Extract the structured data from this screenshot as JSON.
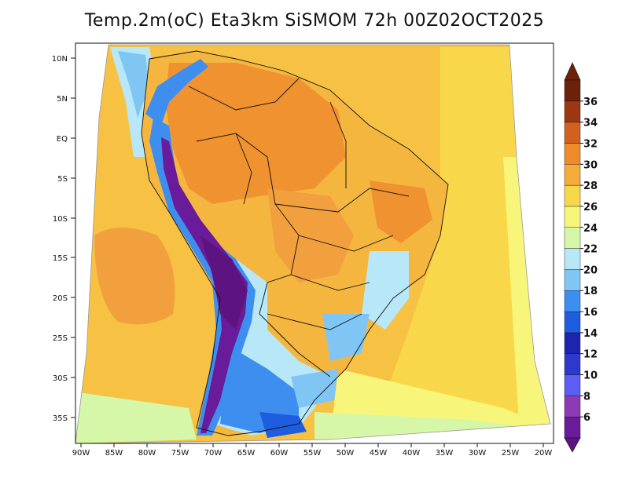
{
  "title": "Temp.2m(oC) Eta3km SiSMOM 72h 00Z02OCT2025",
  "lat_labels": [
    "10N",
    "5N",
    "EQ",
    "5S",
    "10S",
    "15S",
    "20S",
    "25S",
    "30S",
    "35S"
  ],
  "lon_labels": [
    "90W",
    "85W",
    "80W",
    "75W",
    "70W",
    "65W",
    "60W",
    "55W",
    "50W",
    "45W",
    "40W",
    "35W",
    "30W",
    "25W",
    "20W"
  ],
  "colorbar": {
    "ticks": [
      "6",
      "8",
      "10",
      "12",
      "14",
      "16",
      "18",
      "20",
      "22",
      "24",
      "26",
      "28",
      "30",
      "32",
      "34",
      "36"
    ],
    "colors": [
      "#6a1b9a",
      "#8e3ab4",
      "#5b5ef0",
      "#2e38cf",
      "#1e23b0",
      "#1f5de0",
      "#3e8ef0",
      "#7fc6f5",
      "#b8e7f7",
      "#d6f7a8",
      "#f8f67a",
      "#f8d84a",
      "#f5ab3a",
      "#ef8b2b",
      "#d2611e",
      "#9c3712",
      "#6d200a"
    ],
    "low_color": "#5e1480",
    "high_color": "#6d200a"
  },
  "colors": {
    "ocean_warm": "#f7c144",
    "ocean_hot": "#f2a03d",
    "land_hot": "#ef922f",
    "land_warm": "#f5b640",
    "cool": "#7fc6f5",
    "cold": "#3e8ef0",
    "very_cold": "#6a1b9a"
  }
}
